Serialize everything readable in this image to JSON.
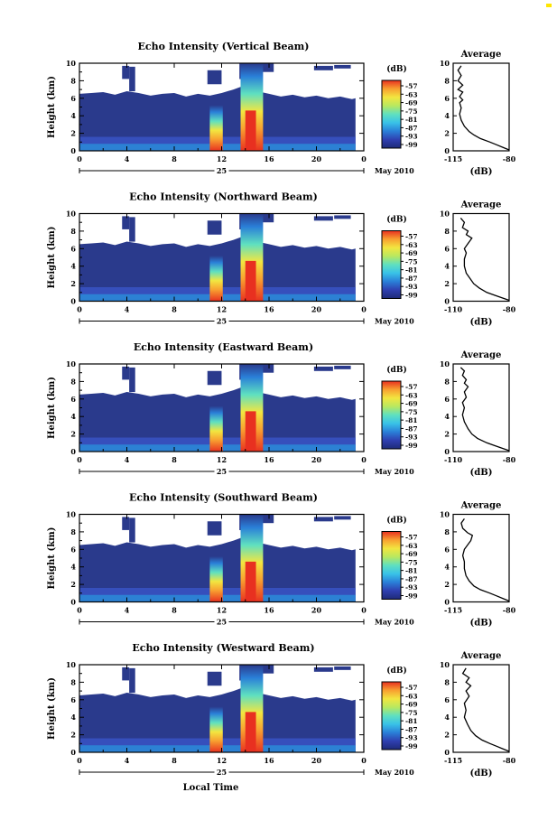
{
  "colors": {
    "background": "#ffffff",
    "echo_fill": "#2a3a8c",
    "scale_stops": [
      "#1e2a78",
      "#2f3fb0",
      "#2a7fd8",
      "#39c2e8",
      "#5fe0c0",
      "#b8e860",
      "#f2e640",
      "#f8a030",
      "#e83020"
    ]
  },
  "chart_data": [
    {
      "type": "heatmap",
      "title": "Echo Intensity (Vertical Beam)",
      "ylabel": "Height (km)",
      "xlabel": "",
      "y_ticks": [
        "0",
        "2",
        "4",
        "6",
        "8",
        "10"
      ],
      "x_ticks": [
        "0",
        "4",
        "8",
        "12",
        "16",
        "20",
        "0"
      ],
      "ylim": [
        0,
        10
      ],
      "xlim": [
        0,
        24
      ],
      "date_day": "25",
      "date_month_year": "May 2010",
      "colorbar": {
        "unit": "(dB)",
        "ticks": [
          "-57",
          "-63",
          "-69",
          "-75",
          "-81",
          "-87",
          "-93",
          "-99"
        ]
      },
      "average_profile": {
        "title": "Average",
        "xlabel": "(dB)",
        "x_ticks": [
          "-115",
          "-80"
        ],
        "xlim": [
          -115,
          -80
        ],
        "y_ticks": [
          "0",
          "2",
          "4",
          "6",
          "8",
          "10"
        ],
        "points": [
          [
            -80,
            0.1
          ],
          [
            -84,
            0.4
          ],
          [
            -88,
            0.7
          ],
          [
            -92,
            1.0
          ],
          [
            -98,
            1.4
          ],
          [
            -102,
            1.8
          ],
          [
            -105,
            2.2
          ],
          [
            -108,
            2.8
          ],
          [
            -110,
            3.5
          ],
          [
            -111,
            4.2
          ],
          [
            -110,
            4.9
          ],
          [
            -111,
            5.5
          ],
          [
            -109,
            5.8
          ],
          [
            -111,
            6.2
          ],
          [
            -109,
            6.7
          ],
          [
            -112,
            7.0
          ],
          [
            -109,
            7.5
          ],
          [
            -112,
            8.0
          ],
          [
            -110,
            8.6
          ],
          [
            -112,
            9.2
          ],
          [
            -110,
            9.7
          ]
        ]
      }
    },
    {
      "type": "heatmap",
      "title": "Echo Intensity (Northward Beam)",
      "ylabel": "Height (km)",
      "xlabel": "",
      "y_ticks": [
        "0",
        "2",
        "4",
        "6",
        "8",
        "10"
      ],
      "x_ticks": [
        "0",
        "4",
        "8",
        "12",
        "16",
        "20",
        "0"
      ],
      "ylim": [
        0,
        10
      ],
      "xlim": [
        0,
        24
      ],
      "date_day": "25",
      "date_month_year": "May 2010",
      "colorbar": {
        "unit": "(dB)",
        "ticks": [
          "-57",
          "-63",
          "-69",
          "-75",
          "-81",
          "-87",
          "-93",
          "-99"
        ]
      },
      "average_profile": {
        "title": "Average",
        "xlabel": "(dB)",
        "x_ticks": [
          "-110",
          "-80"
        ],
        "xlim": [
          -110,
          -80
        ],
        "y_ticks": [
          "0",
          "2",
          "4",
          "6",
          "8",
          "10"
        ],
        "points": [
          [
            -80,
            0.1
          ],
          [
            -84,
            0.4
          ],
          [
            -88,
            0.7
          ],
          [
            -92,
            1.0
          ],
          [
            -96,
            1.5
          ],
          [
            -99,
            2.0
          ],
          [
            -101,
            2.6
          ],
          [
            -103,
            3.2
          ],
          [
            -104,
            4.0
          ],
          [
            -104,
            4.8
          ],
          [
            -103,
            5.5
          ],
          [
            -104,
            6.0
          ],
          [
            -102,
            6.6
          ],
          [
            -100,
            7.2
          ],
          [
            -103,
            7.6
          ],
          [
            -102,
            8.0
          ],
          [
            -105,
            8.4
          ],
          [
            -104,
            9.0
          ],
          [
            -106,
            9.5
          ]
        ]
      }
    },
    {
      "type": "heatmap",
      "title": "Echo Intensity (Eastward Beam)",
      "ylabel": "Height (km)",
      "xlabel": "",
      "y_ticks": [
        "0",
        "2",
        "4",
        "6",
        "8",
        "10"
      ],
      "x_ticks": [
        "0",
        "4",
        "8",
        "12",
        "16",
        "20",
        "0"
      ],
      "ylim": [
        0,
        10
      ],
      "xlim": [
        0,
        24
      ],
      "date_day": "25",
      "date_month_year": "May 2010",
      "colorbar": {
        "unit": "(dB)",
        "ticks": [
          "-57",
          "-63",
          "-69",
          "-75",
          "-81",
          "-87",
          "-93",
          "-99"
        ]
      },
      "average_profile": {
        "title": "Average",
        "xlabel": "(dB)",
        "x_ticks": [
          "-110",
          "-80"
        ],
        "xlim": [
          -110,
          -80
        ],
        "y_ticks": [
          "0",
          "2",
          "4",
          "6",
          "8",
          "10"
        ],
        "points": [
          [
            -80,
            0.1
          ],
          [
            -84,
            0.4
          ],
          [
            -88,
            0.7
          ],
          [
            -92,
            1.0
          ],
          [
            -97,
            1.5
          ],
          [
            -100,
            2.0
          ],
          [
            -102,
            2.6
          ],
          [
            -104,
            3.4
          ],
          [
            -105,
            4.2
          ],
          [
            -104,
            5.0
          ],
          [
            -105,
            5.6
          ],
          [
            -103,
            6.2
          ],
          [
            -104,
            6.8
          ],
          [
            -102,
            7.4
          ],
          [
            -104,
            7.8
          ],
          [
            -103,
            8.2
          ],
          [
            -105,
            8.7
          ],
          [
            -104,
            9.2
          ],
          [
            -106,
            9.6
          ]
        ]
      }
    },
    {
      "type": "heatmap",
      "title": "Echo Intensity (Southward Beam)",
      "ylabel": "Height (km)",
      "xlabel": "",
      "y_ticks": [
        "0",
        "2",
        "4",
        "6",
        "8",
        "10"
      ],
      "x_ticks": [
        "0",
        "4",
        "8",
        "12",
        "16",
        "20",
        "0"
      ],
      "ylim": [
        0,
        10
      ],
      "xlim": [
        0,
        24
      ],
      "date_day": "25",
      "date_month_year": "May 2010",
      "colorbar": {
        "unit": "(dB)",
        "ticks": [
          "-57",
          "-63",
          "-69",
          "-75",
          "-81",
          "-87",
          "-93",
          "-99"
        ]
      },
      "average_profile": {
        "title": "Average",
        "xlabel": "(dB)",
        "x_ticks": [
          "-115",
          "-80"
        ],
        "xlim": [
          -115,
          -80
        ],
        "y_ticks": [
          "0",
          "2",
          "4",
          "6",
          "8",
          "10"
        ],
        "points": [
          [
            -80,
            0.1
          ],
          [
            -84,
            0.4
          ],
          [
            -88,
            0.7
          ],
          [
            -92,
            1.0
          ],
          [
            -98,
            1.4
          ],
          [
            -102,
            1.8
          ],
          [
            -105,
            2.4
          ],
          [
            -107,
            3.0
          ],
          [
            -108,
            3.8
          ],
          [
            -108,
            4.6
          ],
          [
            -109,
            5.3
          ],
          [
            -108,
            6.0
          ],
          [
            -104,
            7.0
          ],
          [
            -103,
            7.6
          ],
          [
            -106,
            7.9
          ],
          [
            -109,
            8.4
          ],
          [
            -110,
            9.0
          ],
          [
            -108,
            9.5
          ]
        ]
      }
    },
    {
      "type": "heatmap",
      "title": "Echo Intensity (Westward Beam)",
      "ylabel": "Height (km)",
      "xlabel": "Local Time",
      "y_ticks": [
        "0",
        "2",
        "4",
        "6",
        "8",
        "10"
      ],
      "x_ticks": [
        "0",
        "4",
        "8",
        "12",
        "16",
        "20",
        "0"
      ],
      "ylim": [
        0,
        10
      ],
      "xlim": [
        0,
        24
      ],
      "date_day": "25",
      "date_month_year": "May 2010",
      "colorbar": {
        "unit": "(dB)",
        "ticks": [
          "-57",
          "-63",
          "-69",
          "-75",
          "-81",
          "-87",
          "-93",
          "-99"
        ]
      },
      "average_profile": {
        "title": "Average",
        "xlabel": "(dB)",
        "x_ticks": [
          "-115",
          "-80"
        ],
        "xlim": [
          -115,
          -80
        ],
        "y_ticks": [
          "0",
          "2",
          "4",
          "6",
          "8",
          "10"
        ],
        "points": [
          [
            -80,
            0.1
          ],
          [
            -84,
            0.4
          ],
          [
            -88,
            0.7
          ],
          [
            -92,
            1.0
          ],
          [
            -97,
            1.4
          ],
          [
            -101,
            1.9
          ],
          [
            -104,
            2.5
          ],
          [
            -106,
            3.2
          ],
          [
            -108,
            4.0
          ],
          [
            -107,
            4.8
          ],
          [
            -108,
            5.6
          ],
          [
            -105,
            6.4
          ],
          [
            -107,
            7.0
          ],
          [
            -104,
            7.6
          ],
          [
            -107,
            8.0
          ],
          [
            -105,
            8.5
          ],
          [
            -109,
            9.0
          ],
          [
            -107,
            9.6
          ]
        ]
      }
    }
  ]
}
